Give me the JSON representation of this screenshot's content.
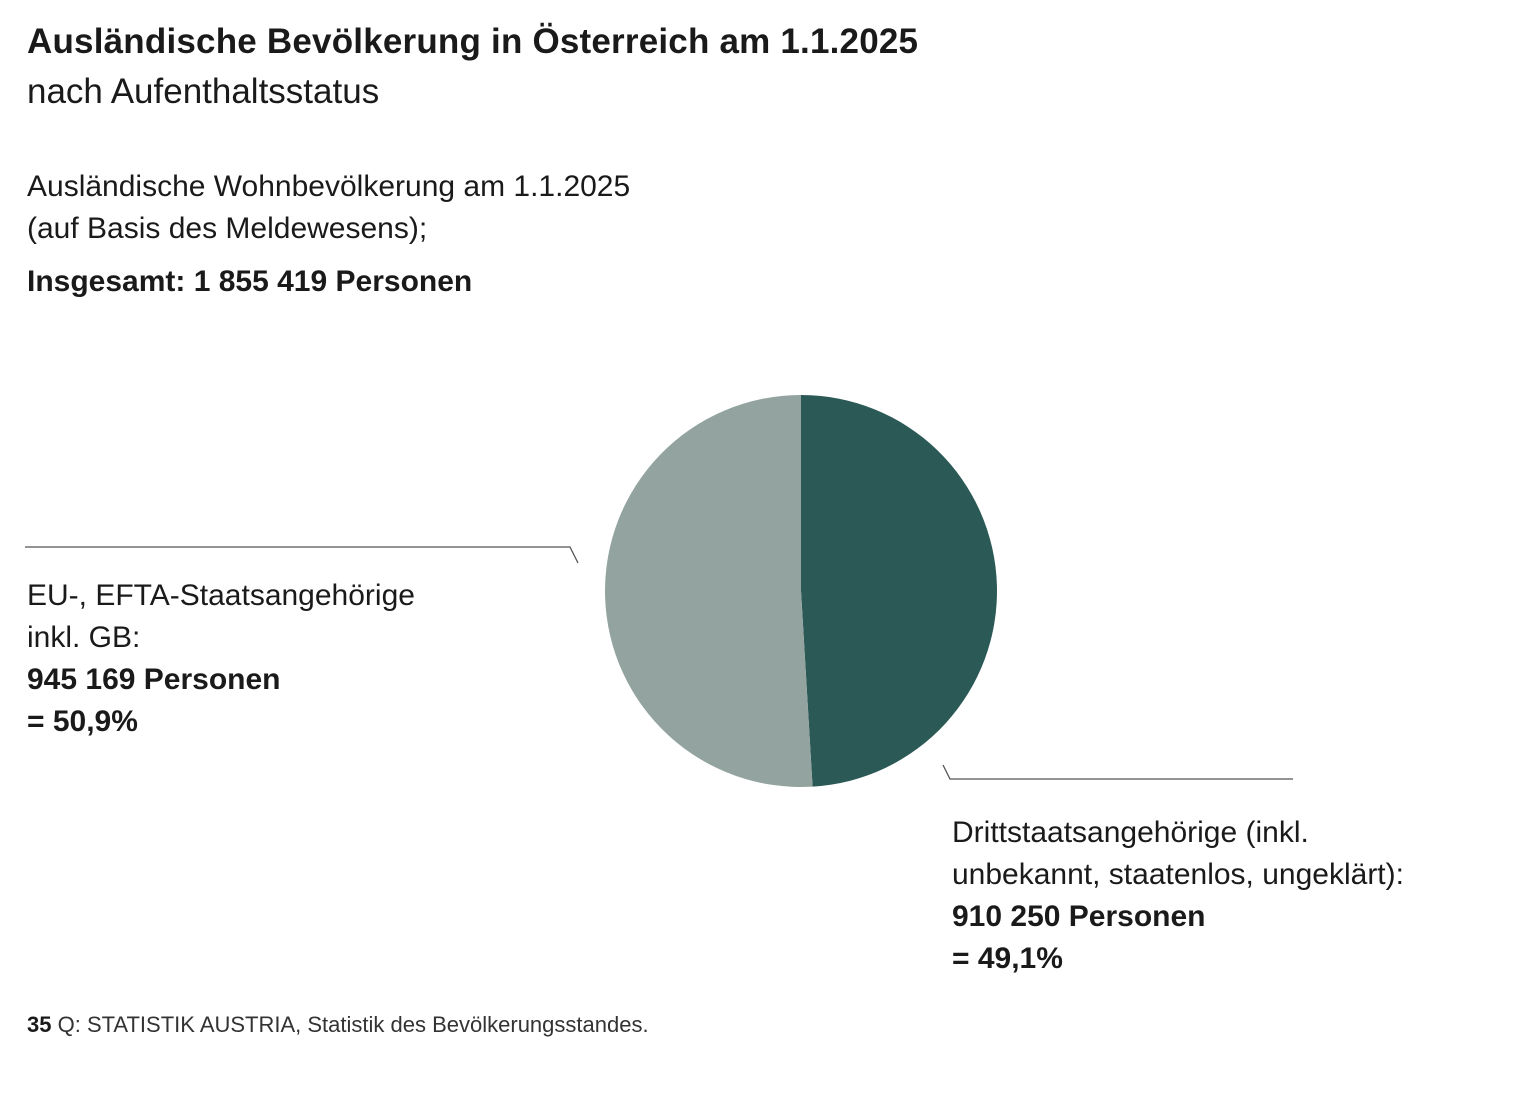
{
  "header": {
    "title": "Ausländische Bevölkerung in Österreich am 1.1.2025",
    "subtitle": "nach Aufenthaltsstatus"
  },
  "description": {
    "line1": "Ausländische Wohnbevölkerung am 1.1.2025",
    "line2": "(auf Basis des Meldewesens);",
    "total": "Insgesamt: 1 855 419 Personen"
  },
  "chart_data": {
    "type": "pie",
    "title": "Ausländische Bevölkerung in Österreich am 1.1.2025",
    "subtitle": "nach Aufenthaltsstatus",
    "total": 1855419,
    "slices": [
      {
        "name": "Drittstaatsangehörige",
        "label_line1": "Drittstaatsangehörige (inkl.",
        "label_line2": "unbekannt, staatenlos, ungeklärt):",
        "value": 910250,
        "value_label": "910 250 Personen",
        "percent": 49.1,
        "percent_label": "= 49,1%",
        "color": "#2b5956"
      },
      {
        "name": "EU-, EFTA-Staatsangehörige",
        "label_line1": "EU-, EFTA-Staatsangehörige",
        "label_line2": "inkl. GB:",
        "value": 945169,
        "value_label": "945 169 Personen",
        "percent": 50.9,
        "percent_label": "= 50,9%",
        "color": "#93a39f"
      }
    ],
    "start_angle": "top",
    "direction": "clockwise"
  },
  "footer": {
    "number": "35",
    "source": "Q: STATISTIK AUSTRIA, Statistik des Bevölkerungsstandes."
  }
}
